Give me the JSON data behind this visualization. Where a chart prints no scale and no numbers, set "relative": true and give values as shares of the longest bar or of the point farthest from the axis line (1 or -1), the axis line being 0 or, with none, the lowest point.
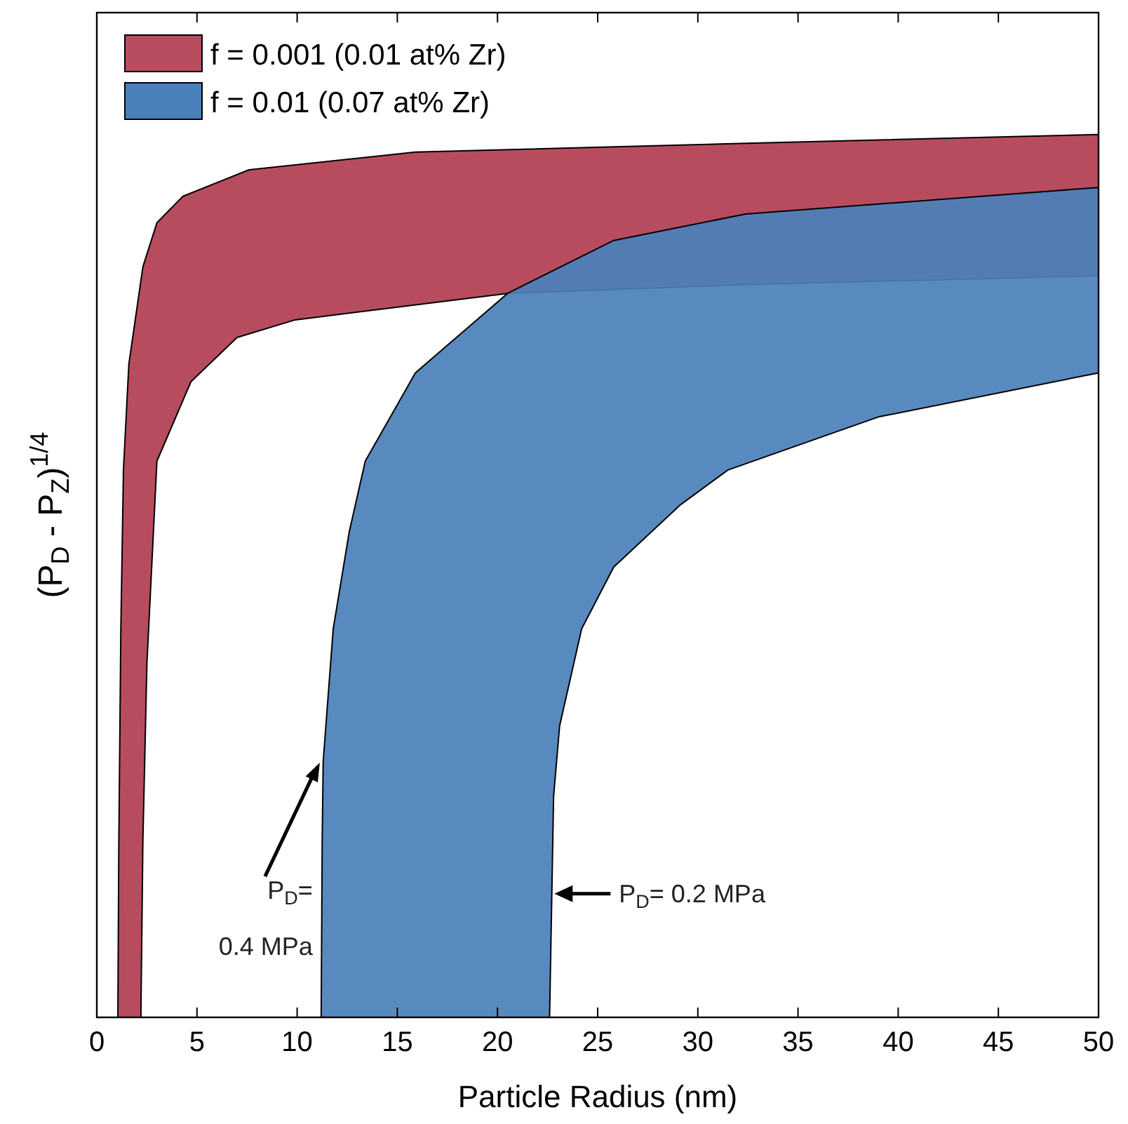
{
  "chart_data": {
    "type": "area",
    "relative": true,
    "xlabel": "Particle Radius (nm)",
    "ylabel": "(P$_{D}$ - P$_{Z}$)$^{1/4}$",
    "xlim": [
      0,
      50
    ],
    "xticks": [
      0,
      5,
      10,
      15,
      20,
      25,
      30,
      35,
      40,
      45,
      50
    ],
    "legend": "top left",
    "grid": false,
    "series": [
      {
        "name": "f = 0.001 (0.01 at% Zr)",
        "color": "#b84c5f",
        "x": [
          1.05,
          1.1,
          1.2,
          1.33,
          1.6,
          2.3,
          3,
          4.3,
          7.6,
          15.9,
          32.4,
          50,
          50,
          32.4,
          20.5,
          9.9,
          7,
          4.7,
          3,
          2.5,
          2.3,
          2.2
        ],
        "values": [
          0,
          0.2,
          0.44,
          0.62,
          0.74,
          0.85,
          0.9,
          0.93,
          0.96,
          0.98,
          0.99,
          1,
          0.84,
          0.83,
          0.82,
          0.79,
          0.77,
          0.72,
          0.63,
          0.4,
          0.2,
          0
        ]
      },
      {
        "name": "f = 0.01 (0.07 at% Zr)",
        "color": "#4a80bb",
        "x": [
          11.2,
          11.25,
          11.3,
          11.8,
          12.6,
          13.4,
          15.9,
          20.5,
          25.8,
          32.4,
          50,
          50,
          39,
          31.5,
          29.1,
          25.8,
          24.2,
          23.1,
          22.8,
          22.6
        ],
        "values": [
          0,
          0.2,
          0.29,
          0.44,
          0.55,
          0.63,
          0.73,
          0.82,
          0.88,
          0.91,
          0.94,
          0.73,
          0.68,
          0.62,
          0.58,
          0.51,
          0.44,
          0.33,
          0.25,
          0
        ]
      }
    ],
    "annotations": [
      {
        "text": "P$_{D}$=\n0.4 MPa",
        "x": 11.2,
        "y": 0.29
      },
      {
        "text": "P$_{D}$= 0.2 MPa",
        "x": 22.7,
        "y": 0.14
      }
    ]
  }
}
